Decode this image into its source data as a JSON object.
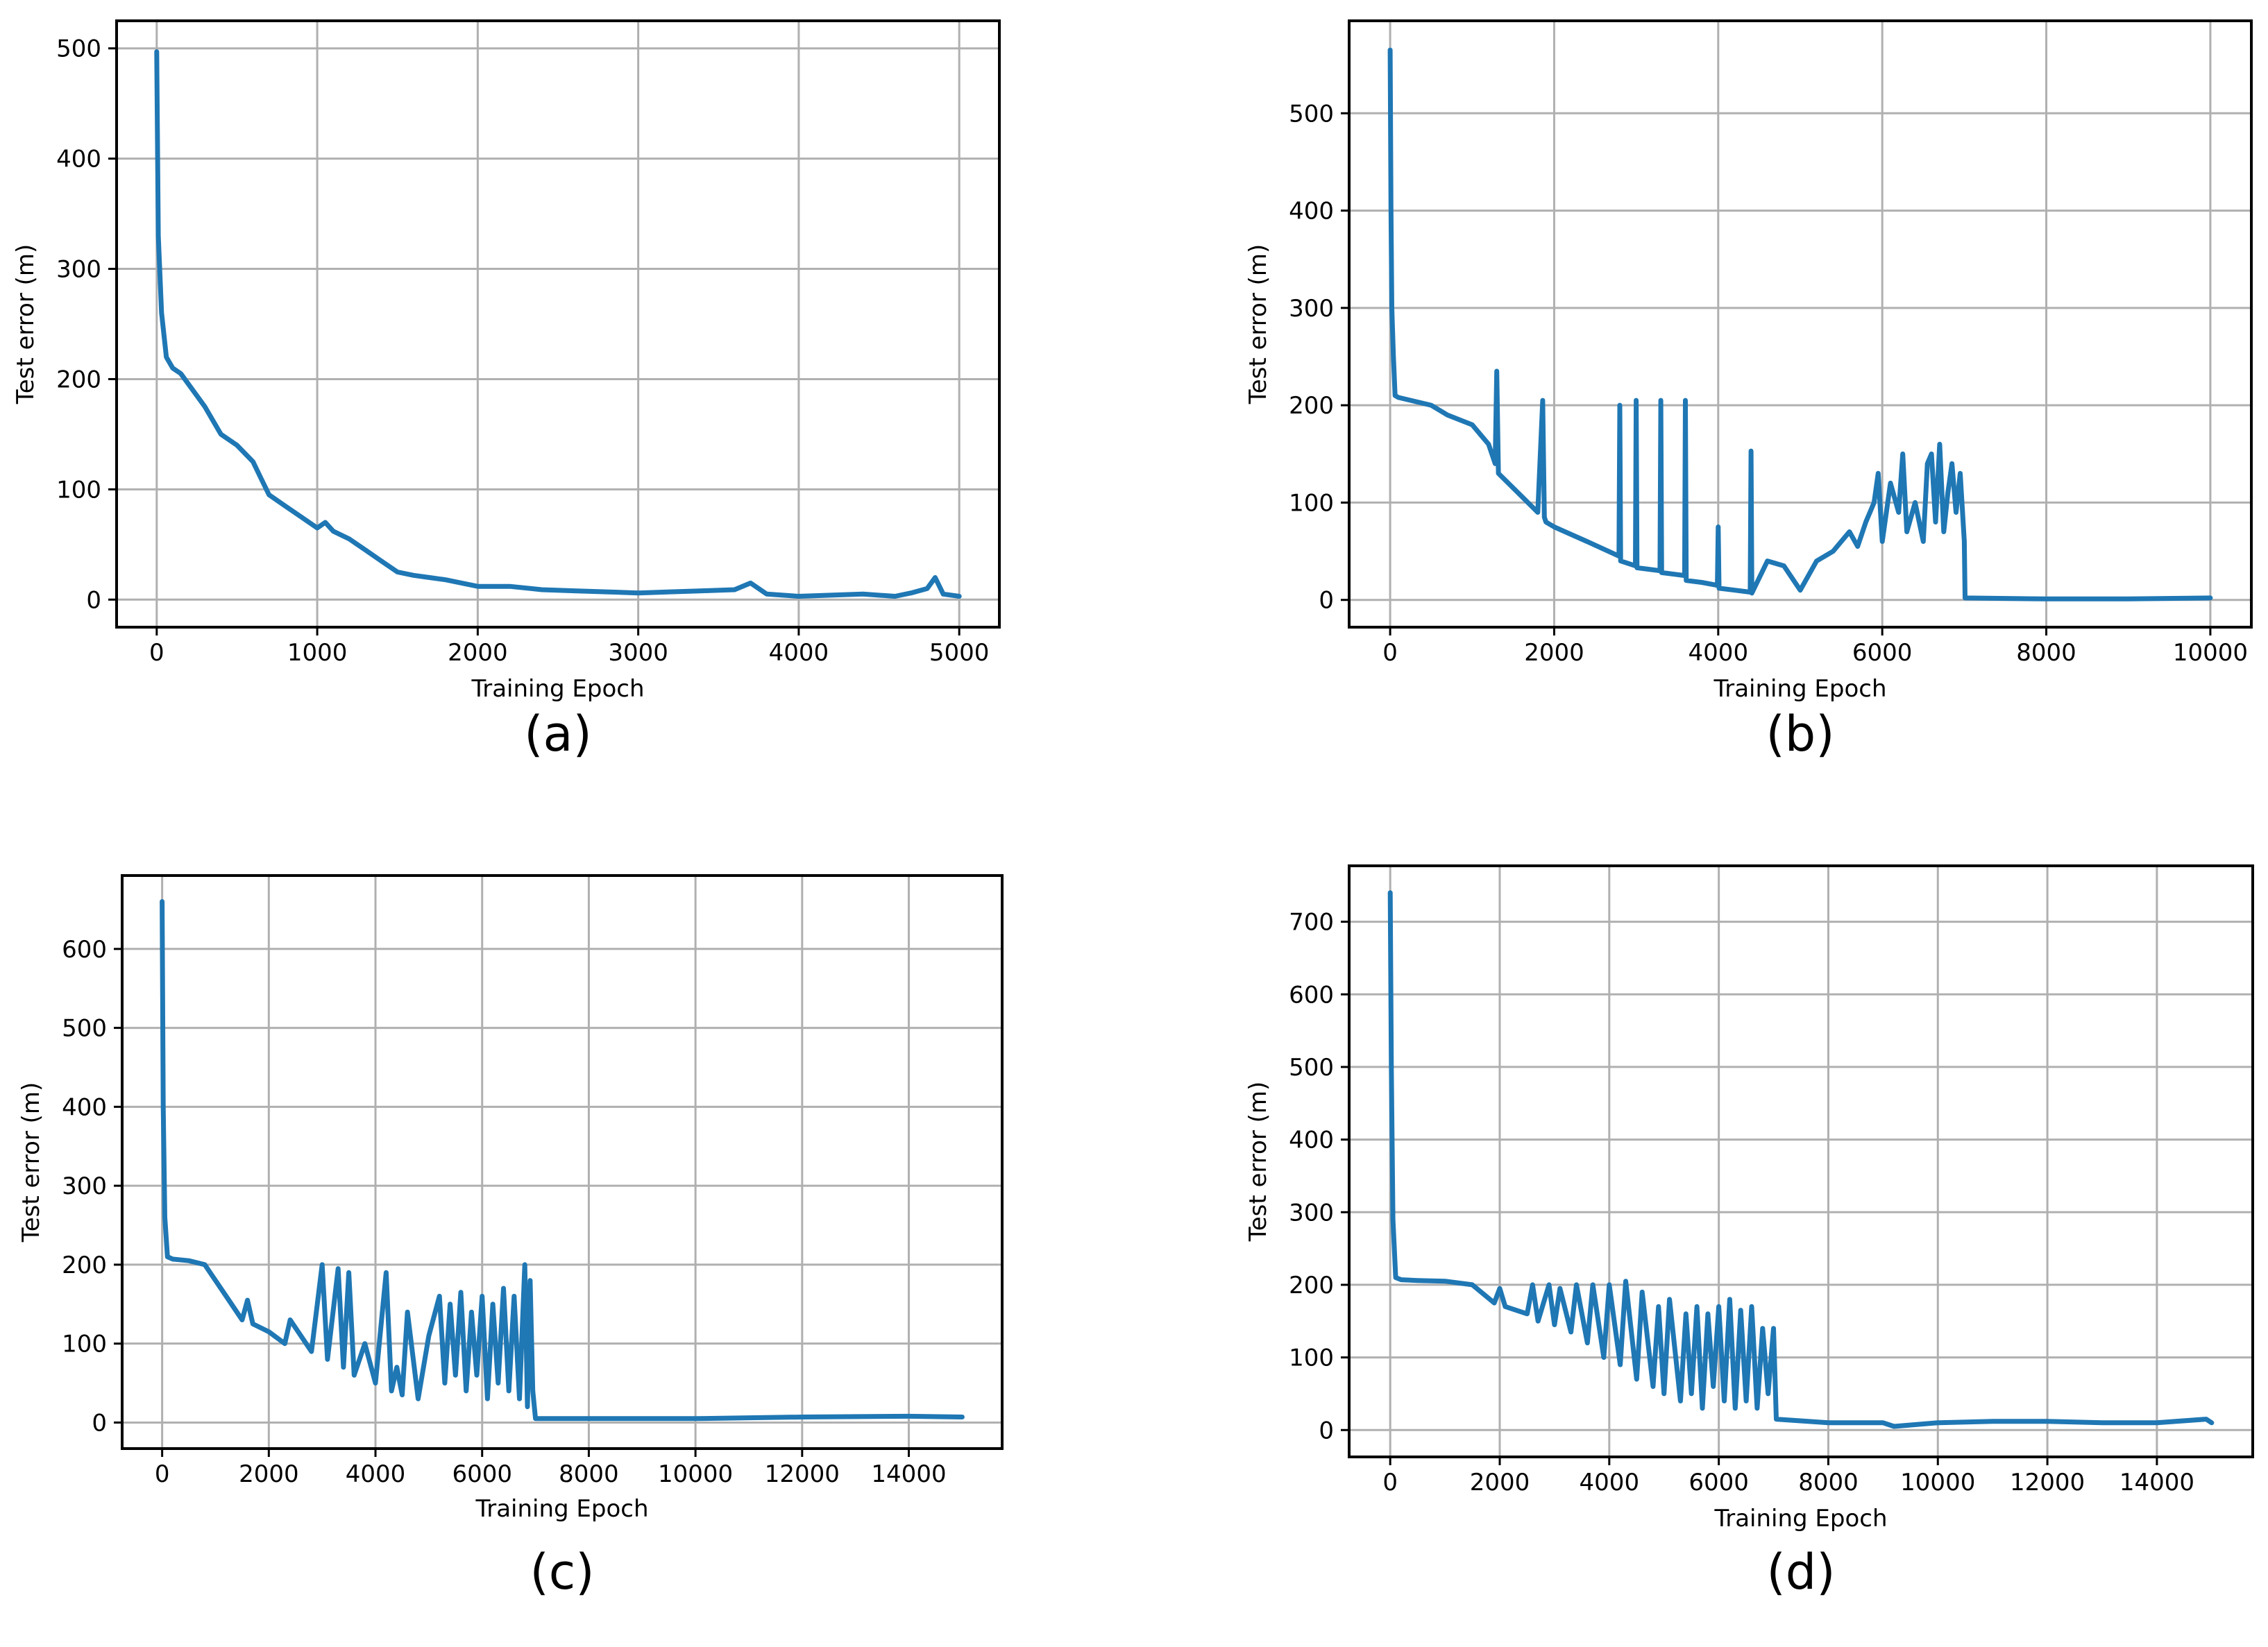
{
  "series_color": "#1f77b4",
  "chart_data": [
    {
      "type": "line",
      "panel_label": "(a)",
      "title": "",
      "xlabel": "Training Epoch",
      "ylabel": "Test error (m)",
      "xlim": [
        -250,
        5250
      ],
      "ylim": [
        -25,
        525
      ],
      "xticks": [
        0,
        1000,
        2000,
        3000,
        4000,
        5000
      ],
      "yticks": [
        0,
        100,
        200,
        300,
        400,
        500
      ],
      "grid": true,
      "series": [
        {
          "name": "Test error",
          "x": [
            0,
            10,
            30,
            60,
            100,
            150,
            200,
            300,
            400,
            500,
            600,
            650,
            700,
            800,
            900,
            1000,
            1050,
            1100,
            1200,
            1300,
            1400,
            1500,
            1600,
            1700,
            1800,
            1900,
            2000,
            2200,
            2400,
            2600,
            2800,
            3000,
            3200,
            3400,
            3600,
            3700,
            3800,
            4000,
            4200,
            4400,
            4600,
            4700,
            4800,
            4850,
            4900,
            5000
          ],
          "values": [
            497,
            330,
            260,
            220,
            210,
            205,
            195,
            175,
            150,
            140,
            125,
            110,
            95,
            85,
            75,
            65,
            70,
            62,
            55,
            45,
            35,
            25,
            22,
            20,
            18,
            15,
            12,
            12,
            9,
            8,
            7,
            6,
            7,
            8,
            9,
            15,
            5,
            3,
            4,
            5,
            3,
            6,
            10,
            20,
            5,
            3
          ]
        }
      ]
    },
    {
      "type": "line",
      "panel_label": "(b)",
      "title": "",
      "xlabel": "Training Epoch",
      "ylabel": "Test error (m)",
      "xlim": [
        -500,
        10500
      ],
      "ylim": [
        -28,
        595
      ],
      "xticks": [
        0,
        2000,
        4000,
        6000,
        8000,
        10000
      ],
      "yticks": [
        0,
        100,
        200,
        300,
        400,
        500
      ],
      "grid": true,
      "series": [
        {
          "name": "Test error",
          "x": [
            0,
            10,
            20,
            40,
            60,
            100,
            500,
            700,
            1000,
            1200,
            1280,
            1300,
            1320,
            1500,
            1800,
            1860,
            1880,
            1900,
            2000,
            2400,
            2790,
            2800,
            2810,
            2990,
            3000,
            3010,
            3290,
            3300,
            3310,
            3590,
            3600,
            3610,
            3800,
            3990,
            4000,
            4010,
            4200,
            4390,
            4400,
            4410,
            4600,
            4800,
            5000,
            5200,
            5400,
            5600,
            5700,
            5800,
            5900,
            5950,
            6000,
            6100,
            6200,
            6250,
            6300,
            6400,
            6500,
            6550,
            6600,
            6650,
            6700,
            6750,
            6800,
            6850,
            6900,
            6950,
            7000,
            7010,
            8000,
            9000,
            10000
          ],
          "values": [
            565,
            400,
            300,
            250,
            210,
            208,
            200,
            190,
            180,
            160,
            140,
            235,
            130,
            115,
            90,
            205,
            85,
            80,
            75,
            60,
            45,
            200,
            40,
            35,
            205,
            33,
            30,
            205,
            28,
            25,
            205,
            20,
            18,
            15,
            75,
            12,
            10,
            8,
            153,
            7,
            40,
            35,
            10,
            40,
            50,
            70,
            55,
            80,
            100,
            130,
            60,
            120,
            90,
            150,
            70,
            100,
            60,
            140,
            150,
            80,
            160,
            70,
            110,
            140,
            90,
            130,
            60,
            2,
            1,
            1,
            2
          ]
        }
      ]
    },
    {
      "type": "line",
      "panel_label": "(c)",
      "title": "",
      "xlabel": "Training Epoch",
      "ylabel": "Test error (m)",
      "xlim": [
        -750,
        15750
      ],
      "ylim": [
        -33,
        693
      ],
      "xticks": [
        0,
        2000,
        4000,
        6000,
        8000,
        10000,
        12000,
        14000
      ],
      "yticks": [
        0,
        100,
        200,
        300,
        400,
        500,
        600
      ],
      "grid": true,
      "series": [
        {
          "name": "Test error",
          "x": [
            0,
            20,
            50,
            100,
            200,
            500,
            800,
            1000,
            1200,
            1500,
            1600,
            1700,
            2000,
            2300,
            2400,
            2800,
            3000,
            3100,
            3300,
            3400,
            3500,
            3600,
            3800,
            4000,
            4200,
            4300,
            4400,
            4500,
            4600,
            4800,
            5000,
            5200,
            5300,
            5400,
            5500,
            5600,
            5700,
            5800,
            5900,
            6000,
            6100,
            6200,
            6300,
            6400,
            6500,
            6600,
            6700,
            6800,
            6850,
            6900,
            6950,
            7000,
            8000,
            10000,
            12000,
            14000,
            15000
          ],
          "values": [
            660,
            400,
            260,
            210,
            207,
            205,
            200,
            180,
            160,
            130,
            155,
            125,
            115,
            100,
            130,
            90,
            200,
            80,
            195,
            70,
            190,
            60,
            100,
            50,
            190,
            40,
            70,
            35,
            140,
            30,
            110,
            160,
            50,
            150,
            60,
            165,
            40,
            140,
            60,
            160,
            30,
            150,
            50,
            170,
            40,
            160,
            30,
            200,
            20,
            180,
            40,
            5,
            5,
            5,
            7,
            8,
            7
          ]
        }
      ]
    },
    {
      "type": "line",
      "panel_label": "(d)",
      "title": "",
      "xlabel": "Training Epoch",
      "ylabel": "Test error (m)",
      "xlim": [
        -750,
        15750
      ],
      "ylim": [
        -37,
        777
      ],
      "xticks": [
        0,
        2000,
        4000,
        6000,
        8000,
        10000,
        12000,
        14000
      ],
      "yticks": [
        0,
        100,
        200,
        300,
        400,
        500,
        600,
        700
      ],
      "grid": true,
      "series": [
        {
          "name": "Test error",
          "x": [
            0,
            20,
            50,
            100,
            200,
            500,
            1000,
            1500,
            1900,
            2000,
            2100,
            2500,
            2600,
            2700,
            2900,
            3000,
            3100,
            3300,
            3400,
            3600,
            3700,
            3900,
            4000,
            4200,
            4300,
            4500,
            4600,
            4800,
            4900,
            5000,
            5100,
            5300,
            5400,
            5500,
            5600,
            5700,
            5800,
            5900,
            6000,
            6100,
            6200,
            6300,
            6400,
            6500,
            6600,
            6700,
            6800,
            6900,
            7000,
            7050,
            8000,
            9000,
            9200,
            10000,
            11000,
            12000,
            13000,
            14000,
            14900,
            15000
          ],
          "values": [
            740,
            500,
            290,
            210,
            207,
            206,
            205,
            200,
            175,
            195,
            170,
            160,
            200,
            150,
            200,
            145,
            195,
            135,
            200,
            120,
            200,
            100,
            200,
            90,
            205,
            70,
            190,
            60,
            170,
            50,
            180,
            40,
            160,
            50,
            170,
            30,
            160,
            60,
            170,
            40,
            180,
            30,
            165,
            40,
            170,
            30,
            140,
            50,
            140,
            15,
            10,
            10,
            5,
            10,
            12,
            12,
            10,
            10,
            15,
            10
          ]
        }
      ]
    }
  ]
}
